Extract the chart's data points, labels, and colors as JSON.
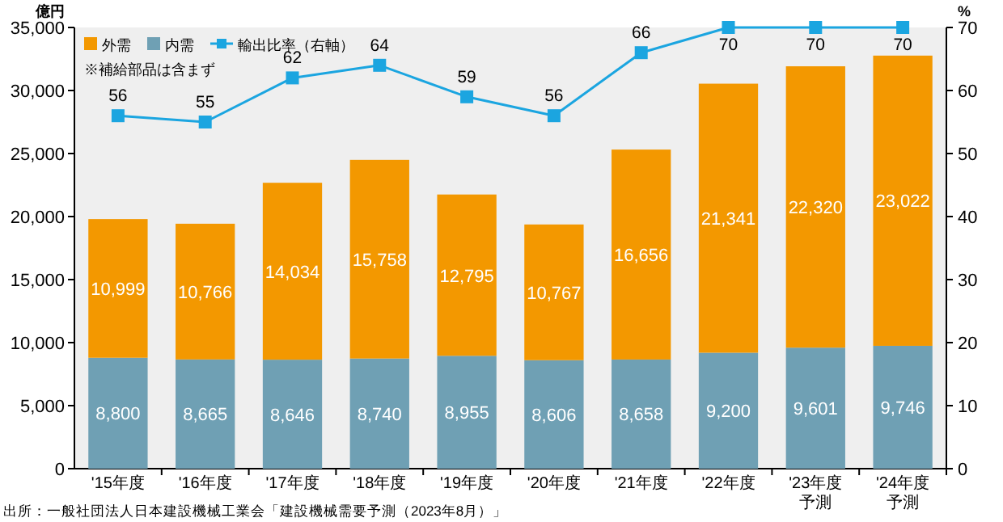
{
  "chart_data": {
    "type": "bar",
    "stacked": true,
    "ylabel": "億円",
    "y2label": "%",
    "categories": [
      "'15年度",
      "'16年度",
      "'17年度",
      "'18年度",
      "'19年度",
      "'20年度",
      "'21年度",
      "'22年度",
      "'23年度予測",
      "'24年度予測"
    ],
    "series": [
      {
        "name": "内需",
        "color": "#6fa0b4",
        "values": [
          8800,
          8665,
          8646,
          8740,
          8955,
          8606,
          8658,
          9200,
          9601,
          9746
        ],
        "value_labels": [
          "8,800",
          "8,665",
          "8,646",
          "8,740",
          "8,955",
          "8,606",
          "8,658",
          "9,200",
          "9,601",
          "9,746"
        ]
      },
      {
        "name": "外需",
        "color": "#f39800",
        "values": [
          10999,
          10766,
          14034,
          15758,
          12795,
          10767,
          16656,
          21341,
          22320,
          23022
        ],
        "value_labels": [
          "10,999",
          "10,766",
          "14,034",
          "15,758",
          "12,795",
          "10,767",
          "16,656",
          "21,341",
          "22,320",
          "23,022"
        ]
      },
      {
        "name": "輸出比率（右軸）",
        "type": "line",
        "axis": "y2",
        "color": "#1ba5e0",
        "marker": "square",
        "values": [
          56,
          55,
          62,
          64,
          59,
          56,
          66,
          70,
          70,
          70
        ]
      }
    ],
    "ylim": [
      0,
      35000
    ],
    "yticks": [
      {
        "value": 0,
        "label": "0"
      },
      {
        "value": 5000,
        "label": "5,000"
      },
      {
        "value": 10000,
        "label": "10,000"
      },
      {
        "value": 15000,
        "label": "15,000"
      },
      {
        "value": 20000,
        "label": "20,000"
      },
      {
        "value": 25000,
        "label": "25,000"
      },
      {
        "value": 30000,
        "label": "30,000"
      },
      {
        "value": 35000,
        "label": "35,000"
      }
    ],
    "y2lim": [
      0,
      70
    ],
    "y2ticks": [
      0,
      10,
      20,
      30,
      40,
      50,
      60,
      70
    ],
    "data_labels": true,
    "legend": "top left",
    "annotations": [
      "※補給部品は含まず",
      "出所：一般社団法人日本建設機械工業会「建設機械需要予測（2023年8月）」"
    ]
  }
}
